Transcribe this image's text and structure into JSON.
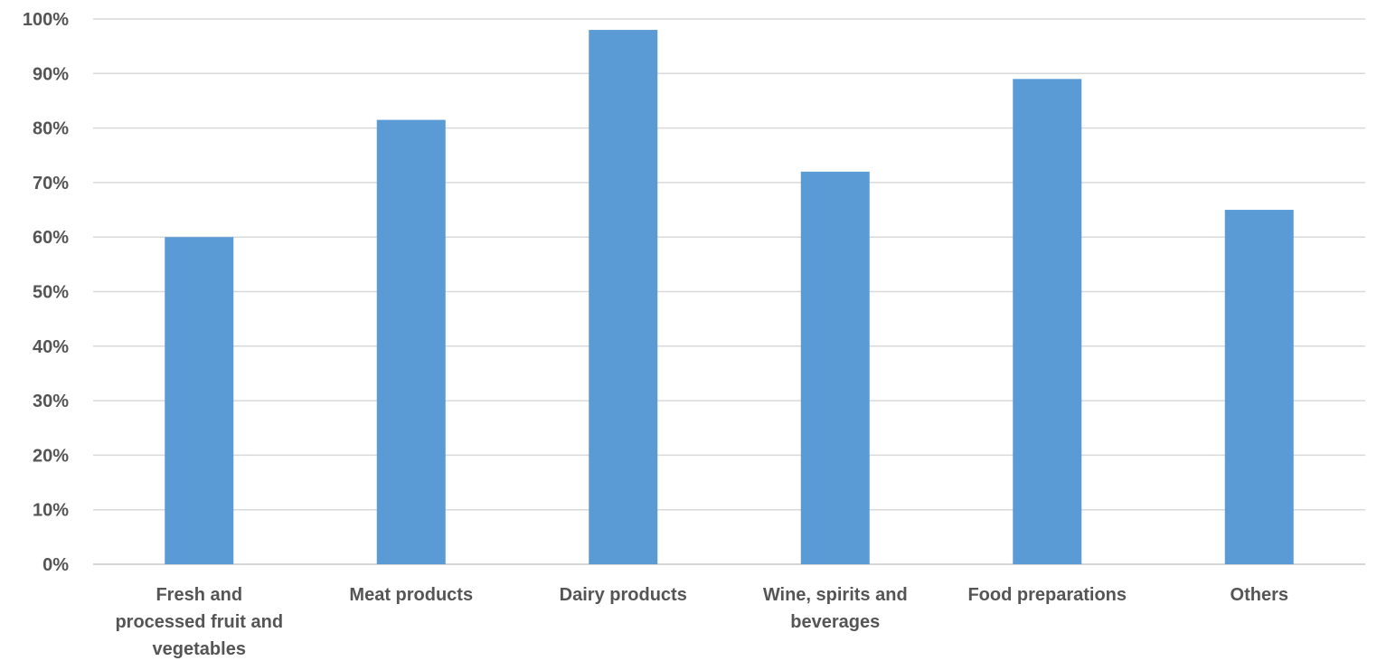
{
  "chart_data": {
    "type": "bar",
    "categories": [
      [
        "Fresh and",
        "processed fruit and",
        "vegetables"
      ],
      [
        "Meat products"
      ],
      [
        "Dairy products"
      ],
      [
        "Wine, spirits and",
        "beverages"
      ],
      [
        "Food preparations"
      ],
      [
        "Others"
      ]
    ],
    "values": [
      60,
      81.5,
      98,
      72,
      89,
      65
    ],
    "ylim": [
      0,
      100
    ],
    "y_ticks": [
      0,
      10,
      20,
      30,
      40,
      50,
      60,
      70,
      80,
      90,
      100
    ],
    "y_tick_labels": [
      "0%",
      "10%",
      "20%",
      "30%",
      "40%",
      "50%",
      "60%",
      "70%",
      "80%",
      "90%",
      "100%"
    ],
    "title": "",
    "xlabel": "",
    "ylabel": "",
    "grid": true,
    "legend": "none",
    "bar_color": "#5b9bd5"
  }
}
